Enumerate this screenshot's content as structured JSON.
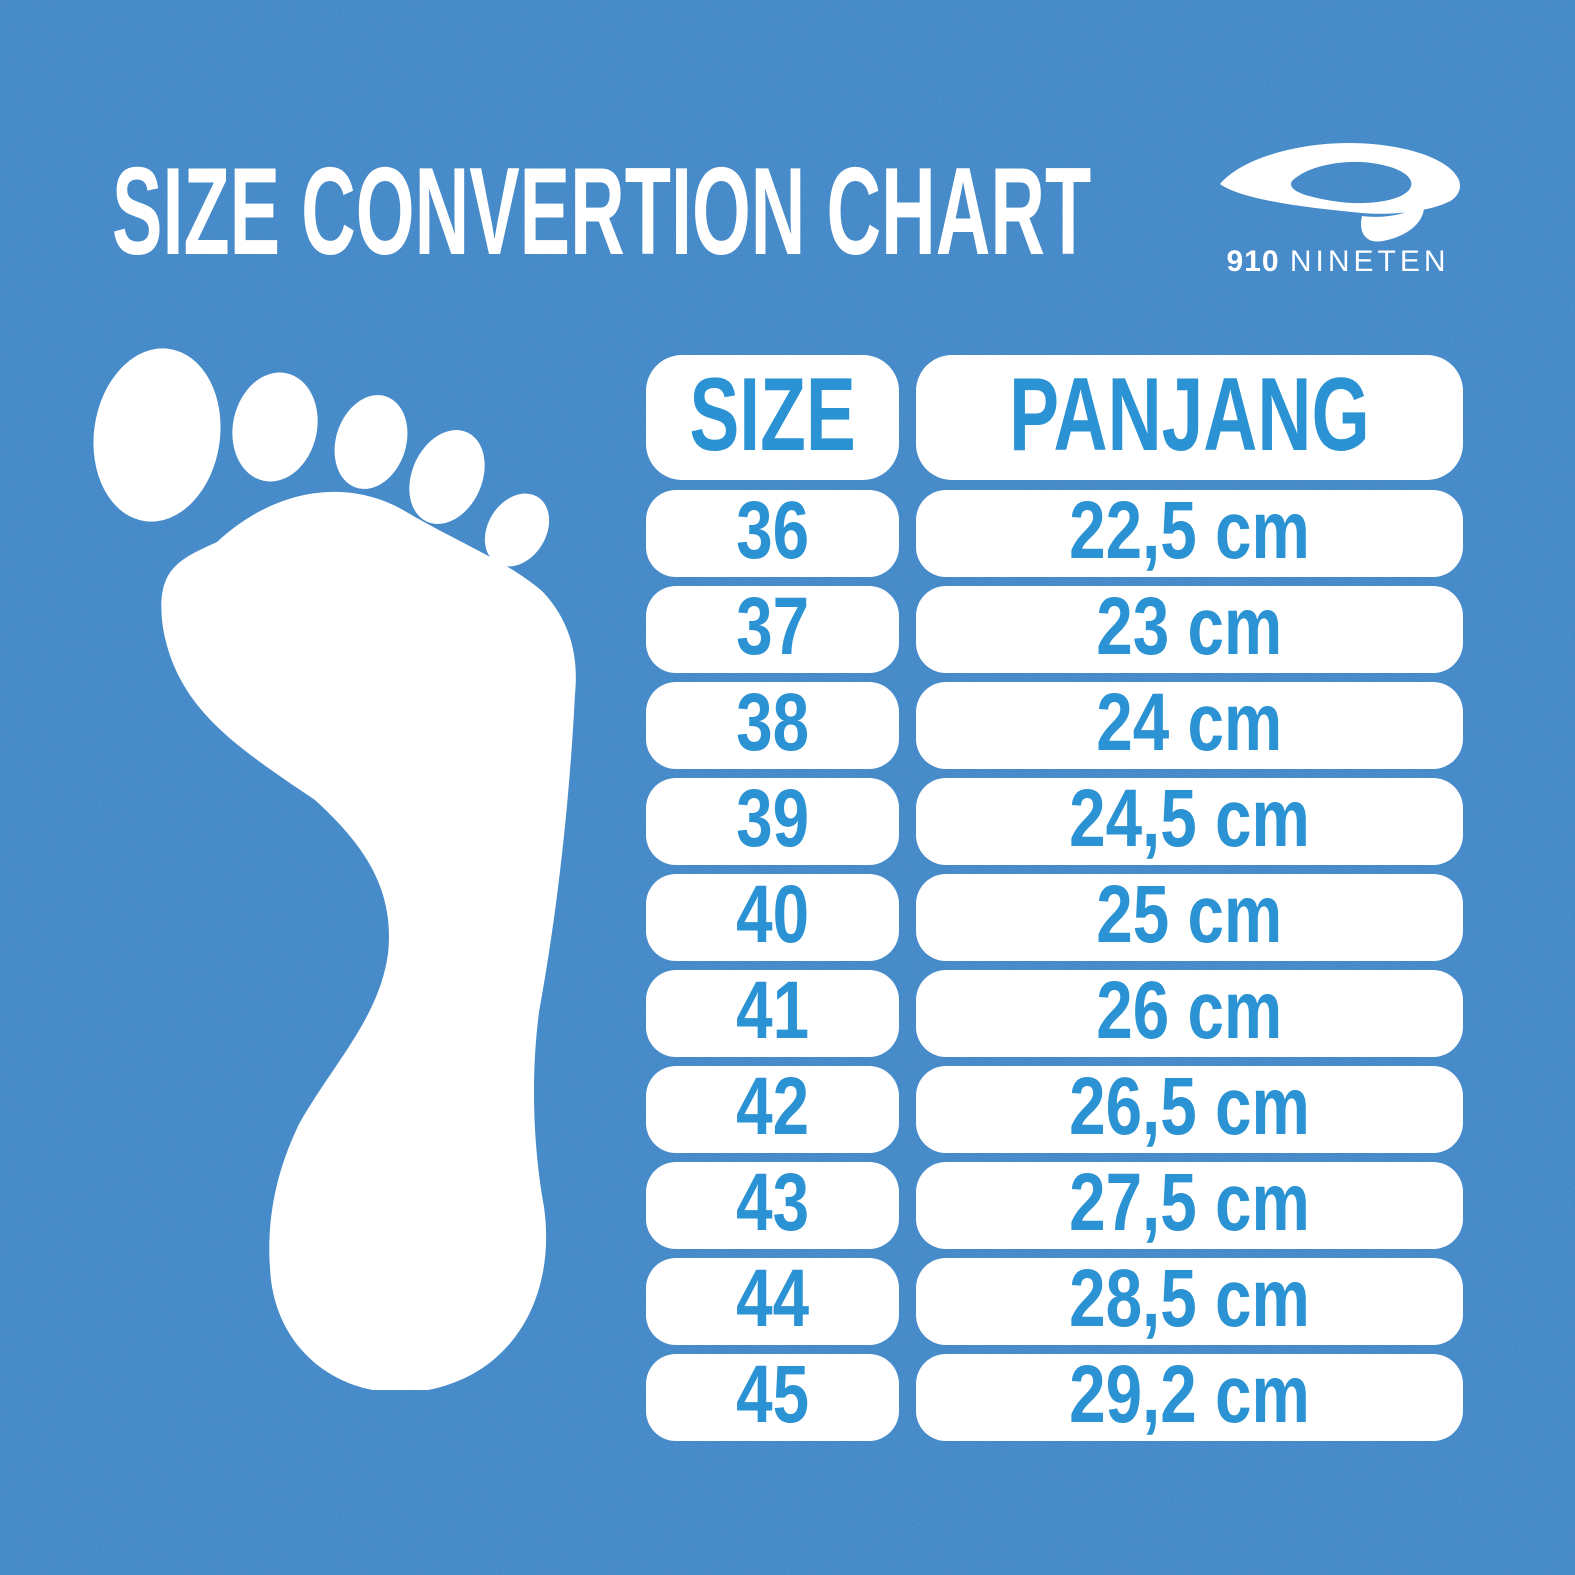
{
  "header": {
    "title": "SIZE CONVERTION CHART"
  },
  "logo": {
    "number": "910",
    "name": "NINETEN"
  },
  "icons": {
    "brand": "nineten-swoosh-icon",
    "graphic": "footprint-icon"
  },
  "colors": {
    "background": "#2e80c2",
    "pill_white": "#ffffff",
    "accent_blue_text": "#2b93d3",
    "title_white": "#ffffff"
  },
  "table": {
    "columns": [
      "SIZE",
      "PANJANG"
    ],
    "rows": [
      {
        "size": "36",
        "length": "22,5 cm"
      },
      {
        "size": "37",
        "length": "23 cm"
      },
      {
        "size": "38",
        "length": "24 cm"
      },
      {
        "size": "39",
        "length": "24,5 cm"
      },
      {
        "size": "40",
        "length": "25 cm"
      },
      {
        "size": "41",
        "length": "26 cm"
      },
      {
        "size": "42",
        "length": "26,5 cm"
      },
      {
        "size": "43",
        "length": "27,5 cm"
      },
      {
        "size": "44",
        "length": "28,5 cm"
      },
      {
        "size": "45",
        "length": "29,2 cm"
      }
    ]
  },
  "chart_data": {
    "type": "table",
    "title": "SIZE CONVERTION CHART",
    "columns": [
      "SIZE",
      "PANJANG"
    ],
    "rows": [
      [
        "36",
        "22,5 cm"
      ],
      [
        "37",
        "23 cm"
      ],
      [
        "38",
        "24 cm"
      ],
      [
        "39",
        "24,5 cm"
      ],
      [
        "40",
        "25 cm"
      ],
      [
        "41",
        "26 cm"
      ],
      [
        "42",
        "26,5 cm"
      ],
      [
        "43",
        "27,5 cm"
      ],
      [
        "44",
        "28,5 cm"
      ],
      [
        "45",
        "29,2 cm"
      ]
    ]
  }
}
